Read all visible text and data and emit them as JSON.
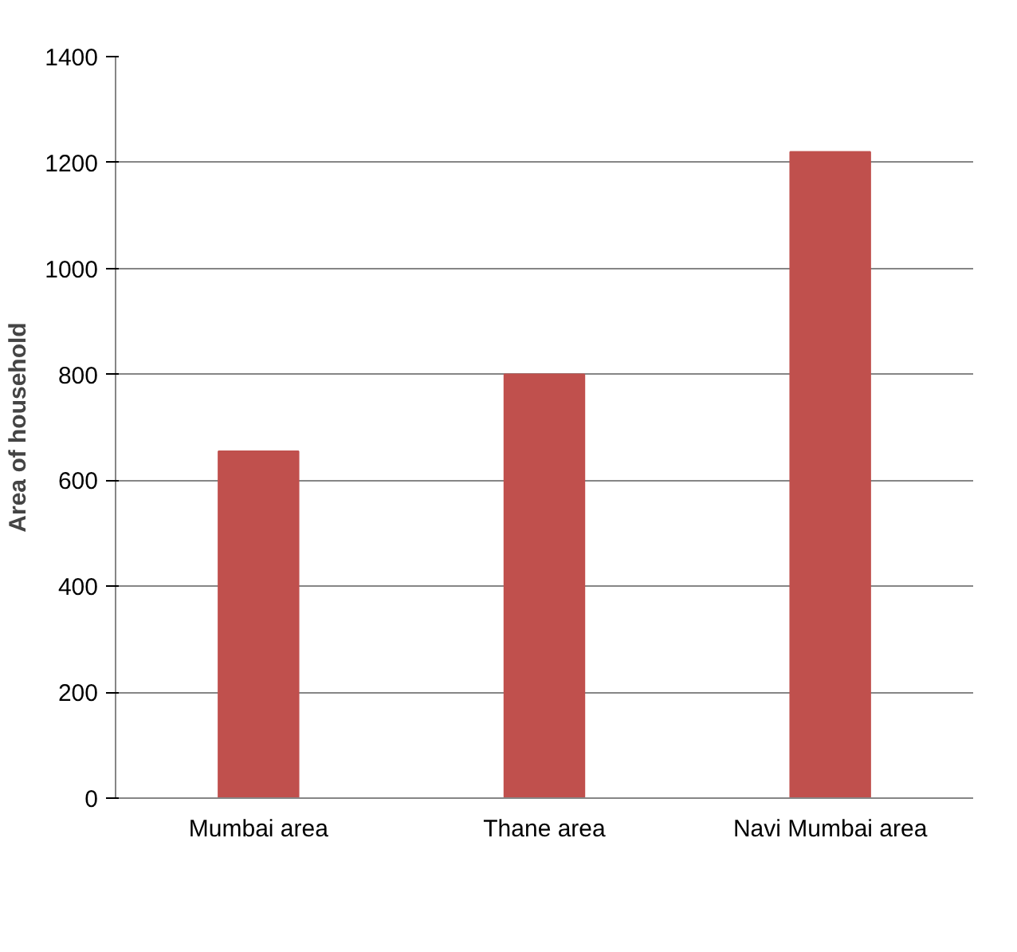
{
  "chart_data": {
    "type": "bar",
    "ylabel": "Area of household",
    "categories": [
      "Mumbai area",
      "Thane area",
      "Navi Mumbai area"
    ],
    "values": [
      655,
      800,
      1220
    ],
    "color": "#c0504d",
    "ylim": [
      0,
      1400
    ],
    "yticks": [
      0,
      200,
      400,
      600,
      800,
      1000,
      1200,
      1400
    ],
    "grid": "y"
  }
}
